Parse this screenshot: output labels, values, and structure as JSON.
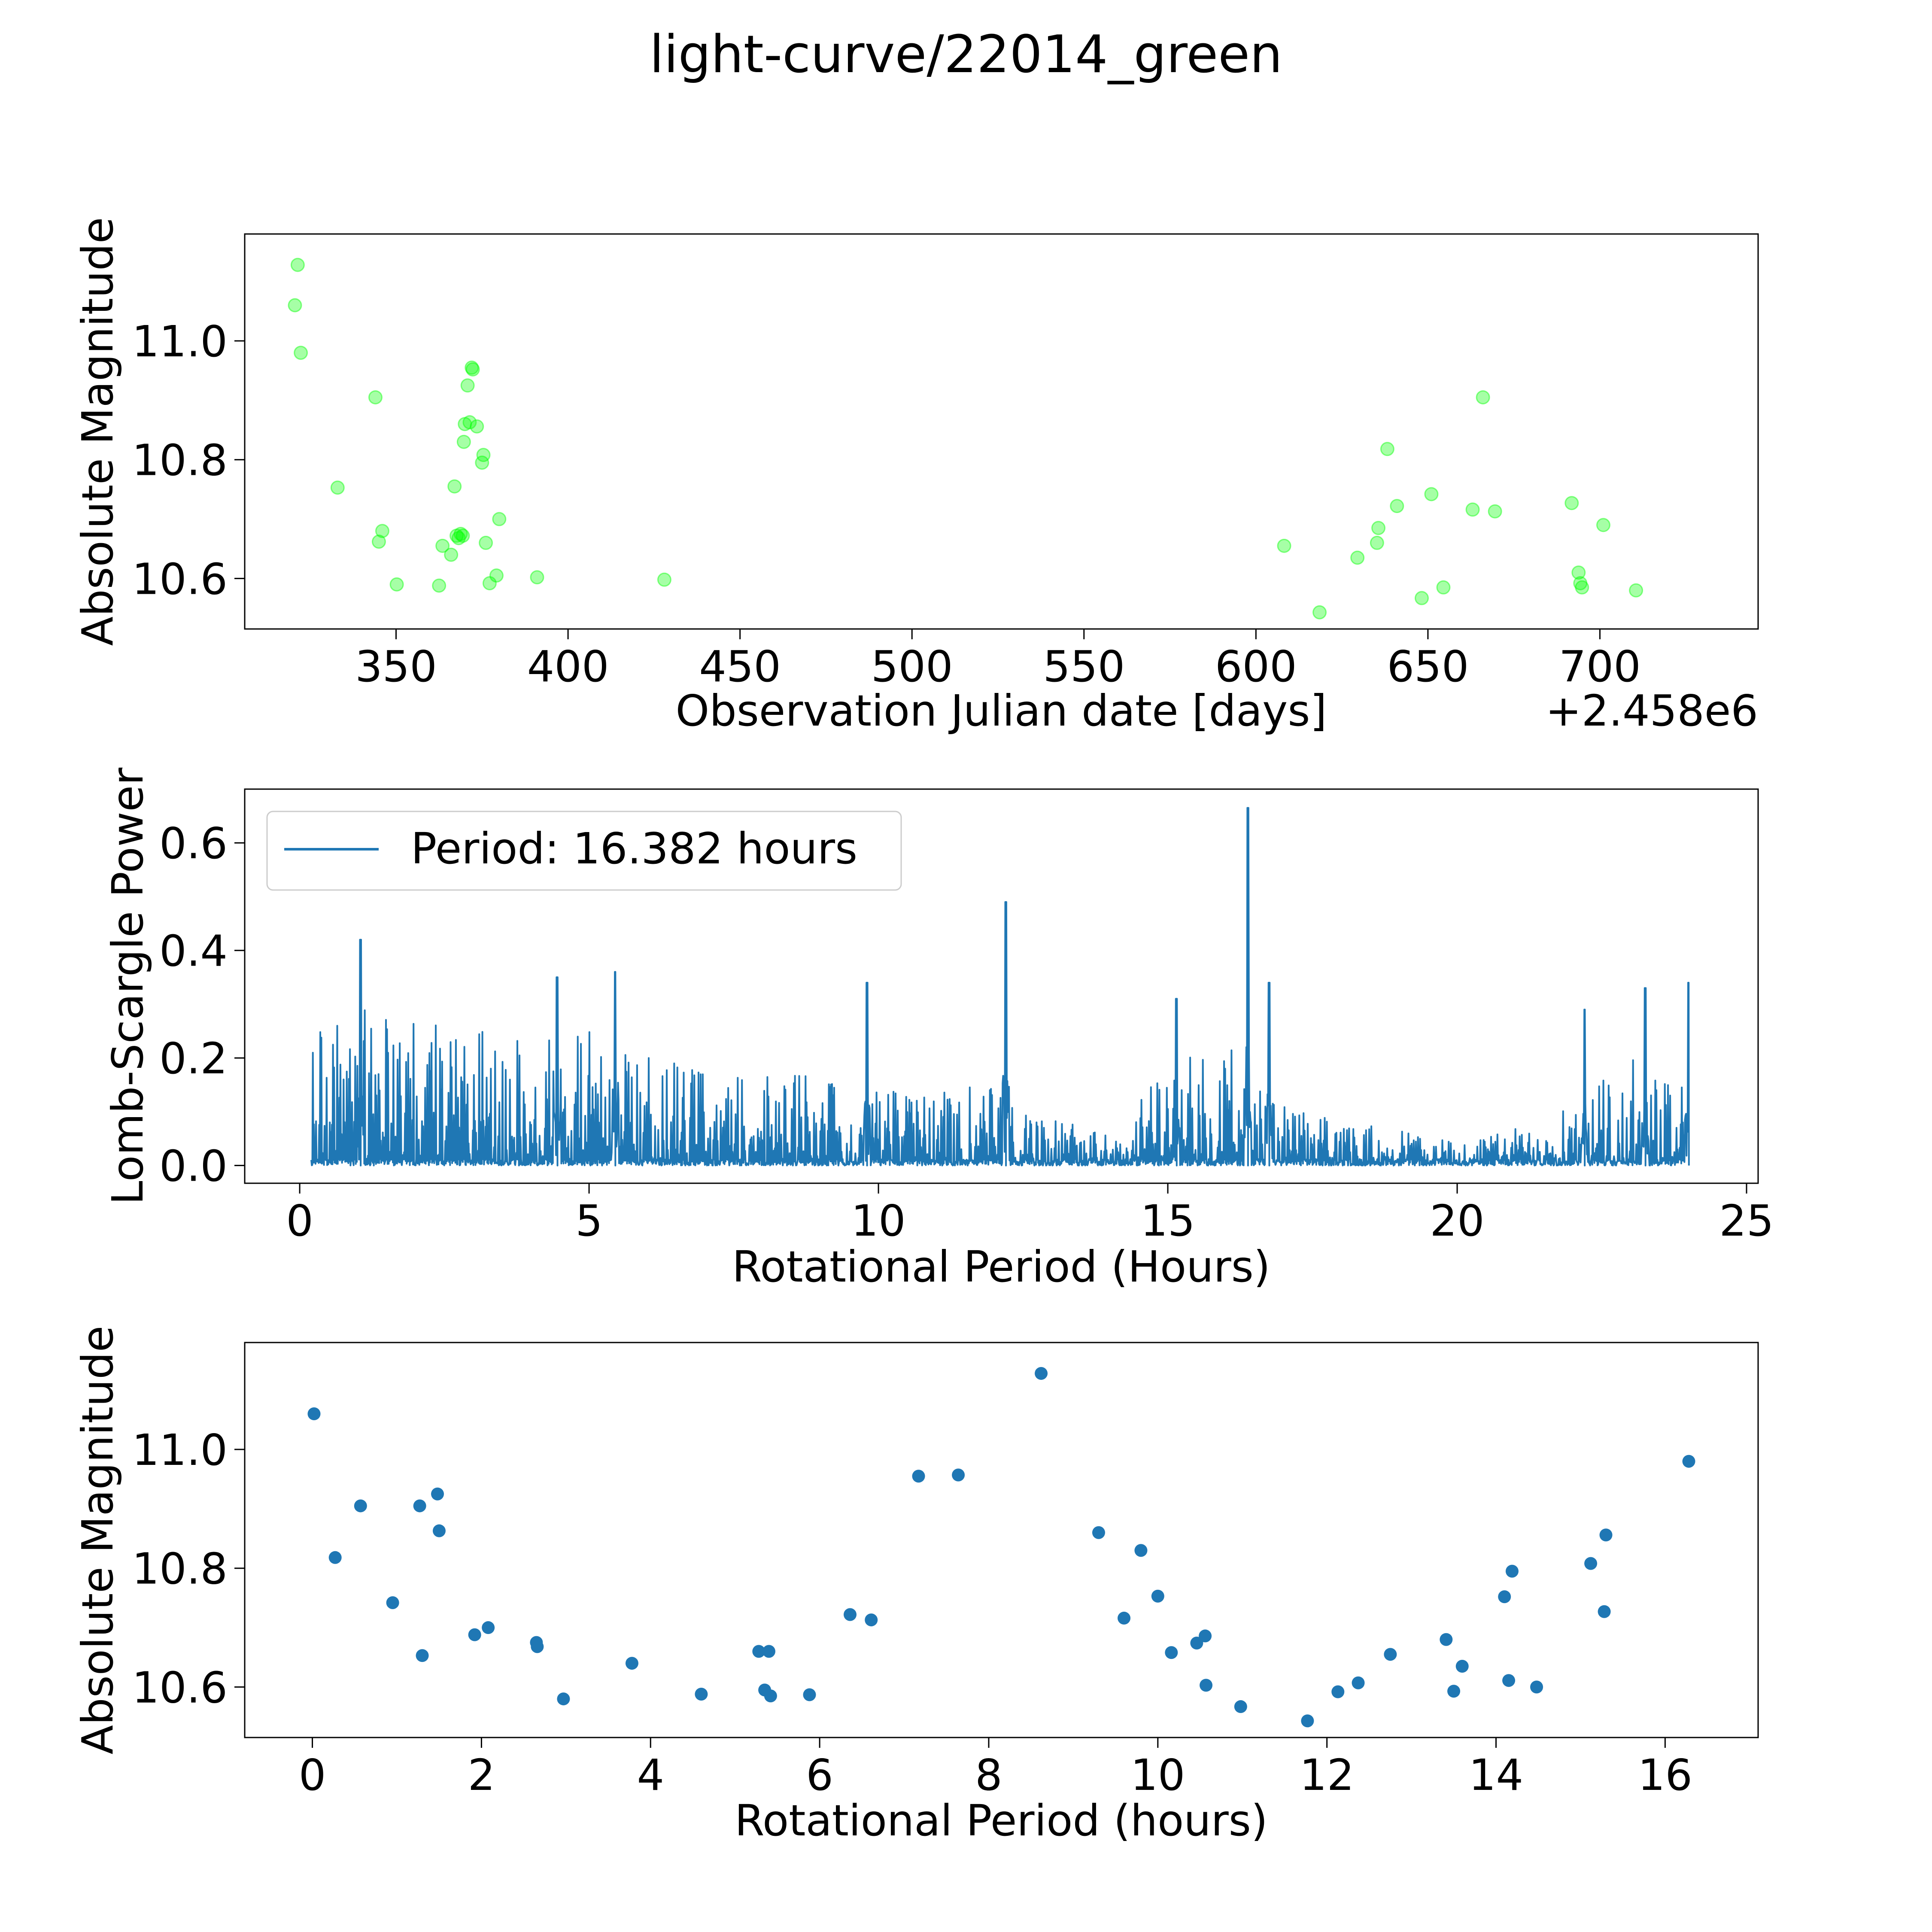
{
  "figure": {
    "title": "light-curve/22014_green",
    "color_lightcurve": "#00ff00",
    "color_series": "#1f77b4"
  },
  "chart_data": [
    {
      "id": "light_curve",
      "type": "scatter",
      "title": "",
      "xlabel": "Observation Julian date [days]",
      "ylabel": "Absolute Magnitude",
      "x_offset_label": "+2.458e6",
      "xlim": [
        306,
        746
      ],
      "ylim": [
        10.515,
        11.18
      ],
      "xticks": [
        350,
        400,
        450,
        500,
        550,
        600,
        650,
        700
      ],
      "xtick_labels": [
        "350",
        "400",
        "450",
        "500",
        "550",
        "600",
        "650",
        "700"
      ],
      "yticks": [
        10.6,
        10.8,
        11.0
      ],
      "ytick_labels": [
        "10.6",
        "10.8",
        "11.0"
      ],
      "series": [
        {
          "name": "observations",
          "alpha": 0.35,
          "points": [
            [
              320.6,
              11.06
            ],
            [
              321.4,
              11.128
            ],
            [
              322.3,
              10.98
            ],
            [
              333.0,
              10.753
            ],
            [
              344.0,
              10.905
            ],
            [
              345.0,
              10.662
            ],
            [
              346.0,
              10.68
            ],
            [
              350.2,
              10.59
            ],
            [
              362.5,
              10.588
            ],
            [
              363.5,
              10.655
            ],
            [
              366.0,
              10.64
            ],
            [
              367.0,
              10.755
            ],
            [
              367.6,
              10.672
            ],
            [
              368.2,
              10.668
            ],
            [
              368.8,
              10.675
            ],
            [
              369.4,
              10.672
            ],
            [
              369.7,
              10.83
            ],
            [
              370.0,
              10.86
            ],
            [
              370.8,
              10.925
            ],
            [
              371.4,
              10.863
            ],
            [
              372.0,
              10.955
            ],
            [
              372.3,
              10.952
            ],
            [
              373.5,
              10.856
            ],
            [
              375.0,
              10.795
            ],
            [
              375.4,
              10.808
            ],
            [
              376.1,
              10.66
            ],
            [
              377.2,
              10.592
            ],
            [
              379.2,
              10.605
            ],
            [
              380.0,
              10.7
            ],
            [
              391.0,
              10.602
            ],
            [
              428.0,
              10.598
            ],
            [
              608.2,
              10.655
            ],
            [
              618.5,
              10.543
            ],
            [
              629.5,
              10.635
            ],
            [
              635.2,
              10.66
            ],
            [
              635.6,
              10.685
            ],
            [
              638.2,
              10.818
            ],
            [
              641.0,
              10.722
            ],
            [
              648.2,
              10.567
            ],
            [
              651.0,
              10.742
            ],
            [
              654.5,
              10.585
            ],
            [
              663.0,
              10.716
            ],
            [
              666.0,
              10.905
            ],
            [
              669.5,
              10.713
            ],
            [
              691.8,
              10.727
            ],
            [
              693.8,
              10.61
            ],
            [
              694.3,
              10.592
            ],
            [
              694.8,
              10.585
            ],
            [
              701.0,
              10.69
            ],
            [
              710.5,
              10.58
            ]
          ]
        }
      ]
    },
    {
      "id": "periodogram",
      "type": "line",
      "title": "",
      "xlabel": "Rotational Period (Hours)",
      "ylabel": "Lomb-Scargle Power",
      "xlim": [
        -0.95,
        25.2
      ],
      "ylim": [
        -0.033,
        0.7
      ],
      "xticks": [
        0,
        5,
        10,
        15,
        20,
        25
      ],
      "xtick_labels": [
        "0",
        "5",
        "10",
        "15",
        "20",
        "25"
      ],
      "yticks": [
        0.0,
        0.2,
        0.4,
        0.6
      ],
      "ytick_labels": [
        "0.0",
        "0.2",
        "0.4",
        "0.6"
      ],
      "legend": {
        "position": "upper-left",
        "entries": [
          "Period: 16.382 hours"
        ]
      },
      "period_range": [
        0.2,
        24.0
      ],
      "best_period": 16.382,
      "max_power": 0.665,
      "envelope": [
        [
          0.2,
          0.21
        ],
        [
          1.0,
          0.26
        ],
        [
          2.0,
          0.24
        ],
        [
          3.0,
          0.22
        ],
        [
          4.0,
          0.2
        ],
        [
          5.0,
          0.22
        ],
        [
          6.0,
          0.18
        ],
        [
          7.0,
          0.15
        ],
        [
          8.0,
          0.16
        ],
        [
          9.0,
          0.14
        ],
        [
          10.0,
          0.12
        ],
        [
          11.0,
          0.12
        ],
        [
          12.0,
          0.16
        ],
        [
          13.0,
          0.08
        ],
        [
          14.0,
          0.05
        ],
        [
          15.0,
          0.16
        ],
        [
          16.0,
          0.2
        ],
        [
          17.0,
          0.1
        ],
        [
          18.0,
          0.07
        ],
        [
          19.0,
          0.06
        ],
        [
          20.0,
          0.04
        ],
        [
          21.0,
          0.06
        ],
        [
          22.0,
          0.12
        ],
        [
          23.0,
          0.18
        ],
        [
          24.0,
          0.2
        ]
      ],
      "peaks": [
        [
          1.05,
          0.42
        ],
        [
          4.45,
          0.35
        ],
        [
          5.45,
          0.36
        ],
        [
          9.8,
          0.34
        ],
        [
          12.2,
          0.49
        ],
        [
          15.15,
          0.31
        ],
        [
          16.382,
          0.665
        ],
        [
          16.75,
          0.34
        ],
        [
          22.2,
          0.29
        ],
        [
          23.25,
          0.33
        ],
        [
          24.0,
          0.34
        ]
      ]
    },
    {
      "id": "folded",
      "type": "scatter",
      "title": "",
      "xlabel": "Rotational Period (hours)",
      "ylabel": "Absolute Magnitude",
      "xlim": [
        -0.8,
        17.1
      ],
      "ylim": [
        10.515,
        11.18
      ],
      "xticks": [
        0,
        2,
        4,
        6,
        8,
        10,
        12,
        14,
        16
      ],
      "xtick_labels": [
        "0",
        "2",
        "4",
        "6",
        "8",
        "10",
        "12",
        "14",
        "16"
      ],
      "yticks": [
        10.6,
        10.8,
        11.0
      ],
      "ytick_labels": [
        "10.6",
        "10.8",
        "11.0"
      ],
      "series": [
        {
          "name": "folded observations",
          "points": [
            [
              0.02,
              11.06
            ],
            [
              0.27,
              10.818
            ],
            [
              0.57,
              10.905
            ],
            [
              0.95,
              10.742
            ],
            [
              1.27,
              10.905
            ],
            [
              1.3,
              10.653
            ],
            [
              1.48,
              10.925
            ],
            [
              1.5,
              10.863
            ],
            [
              1.92,
              10.688
            ],
            [
              2.08,
              10.7
            ],
            [
              2.65,
              10.675
            ],
            [
              2.66,
              10.668
            ],
            [
              2.97,
              10.58
            ],
            [
              3.78,
              10.64
            ],
            [
              4.6,
              10.588
            ],
            [
              5.28,
              10.66
            ],
            [
              5.35,
              10.595
            ],
            [
              5.4,
              10.66
            ],
            [
              5.42,
              10.585
            ],
            [
              5.88,
              10.587
            ],
            [
              6.36,
              10.722
            ],
            [
              6.61,
              10.713
            ],
            [
              7.17,
              10.955
            ],
            [
              7.64,
              10.957
            ],
            [
              8.62,
              11.128
            ],
            [
              9.3,
              10.86
            ],
            [
              9.6,
              10.716
            ],
            [
              9.8,
              10.83
            ],
            [
              10.0,
              10.753
            ],
            [
              10.16,
              10.658
            ],
            [
              10.46,
              10.674
            ],
            [
              10.56,
              10.686
            ],
            [
              10.57,
              10.603
            ],
            [
              10.98,
              10.567
            ],
            [
              11.77,
              10.543
            ],
            [
              12.13,
              10.592
            ],
            [
              12.37,
              10.607
            ],
            [
              12.75,
              10.655
            ],
            [
              13.41,
              10.68
            ],
            [
              13.5,
              10.593
            ],
            [
              13.6,
              10.635
            ],
            [
              14.1,
              10.752
            ],
            [
              14.15,
              10.611
            ],
            [
              14.19,
              10.795
            ],
            [
              14.48,
              10.6
            ],
            [
              15.12,
              10.808
            ],
            [
              15.28,
              10.727
            ],
            [
              15.3,
              10.856
            ],
            [
              16.28,
              10.98
            ]
          ]
        }
      ]
    }
  ]
}
